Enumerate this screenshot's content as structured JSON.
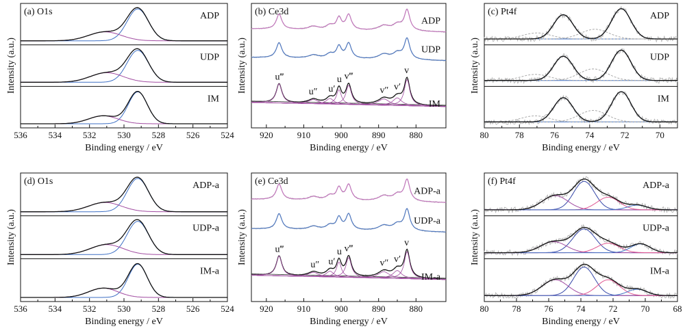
{
  "figure": {
    "panels": [
      "a",
      "b",
      "c",
      "d",
      "e",
      "f"
    ]
  },
  "colors": {
    "envelope": "#111111",
    "raw": "#b3b3b3",
    "blue": "#3d6fc4",
    "purple": "#a04aa0",
    "pink": "#e05590",
    "navy": "#3547a8",
    "dashed": "#a9a9a9",
    "ce_adp": "#c276bc",
    "ce_udp": "#4f78c0",
    "background": "#444444"
  },
  "chart_data": [
    {
      "id": "a",
      "type": "line",
      "title": "(a) O1s",
      "xlabel": "Binding energy / eV",
      "ylabel": "Intensity (a.u.)",
      "xlim": [
        536,
        524
      ],
      "x_reversed": true,
      "xticks": [
        "536",
        "534",
        "532",
        "530",
        "528",
        "526",
        "524"
      ],
      "xticks_values": [
        536,
        534,
        532,
        530,
        528,
        526,
        524
      ],
      "stack_labels": [
        "ADP",
        "UDP",
        "IM"
      ],
      "series": [
        {
          "name": "ADP",
          "peaks": [
            {
              "center": 529.2,
              "height": 1.0,
              "width": 0.62,
              "color": "blue"
            },
            {
              "center": 531.1,
              "height": 0.28,
              "width": 0.95,
              "color": "purple"
            }
          ]
        },
        {
          "name": "UDP",
          "peaks": [
            {
              "center": 529.2,
              "height": 1.0,
              "width": 0.62,
              "color": "blue"
            },
            {
              "center": 531.0,
              "height": 0.3,
              "width": 0.95,
              "color": "purple"
            }
          ]
        },
        {
          "name": "IM",
          "peaks": [
            {
              "center": 529.2,
              "height": 1.0,
              "width": 0.55,
              "color": "blue"
            },
            {
              "center": 531.2,
              "height": 0.25,
              "width": 0.85,
              "color": "purple"
            }
          ]
        }
      ]
    },
    {
      "id": "b",
      "type": "line",
      "title": "(b) Ce3d",
      "xlabel": "Binding energy / eV",
      "ylabel": "Intensity (a.u.)",
      "xlim": [
        924,
        872
      ],
      "x_reversed": true,
      "xticks": [
        "920",
        "910",
        "900",
        "890",
        "880"
      ],
      "xticks_values": [
        920,
        910,
        900,
        890,
        880
      ],
      "stack_labels": [
        "ADP",
        "UDP",
        "IM"
      ],
      "peak_labels": [
        {
          "text": "u‴",
          "x": 916.5
        },
        {
          "text": "u″",
          "x": 907.5
        },
        {
          "text": "u′",
          "x": 902.5
        },
        {
          "text": "u",
          "x": 900.5
        },
        {
          "text": "v‴",
          "x": 898.0
        },
        {
          "text": "v″",
          "x": 888.5
        },
        {
          "text": "v′",
          "x": 885.0
        },
        {
          "text": "v",
          "x": 882.5
        }
      ],
      "series": [
        {
          "name": "ADP",
          "color": "ce_adp"
        },
        {
          "name": "UDP",
          "color": "ce_udp"
        },
        {
          "name": "IM",
          "color": "envelope"
        }
      ]
    },
    {
      "id": "c",
      "type": "line",
      "title": "(c) Pt4f",
      "xlabel": "Binding energy / eV",
      "ylabel": "Intensity (a.u.)",
      "xlim": [
        80,
        69
      ],
      "x_reversed": true,
      "xticks": [
        "80",
        "78",
        "76",
        "74",
        "72",
        "70"
      ],
      "xticks_values": [
        80,
        78,
        76,
        74,
        72,
        70
      ],
      "stack_labels": [
        "ADP",
        "UDP",
        "IM"
      ],
      "series": [
        {
          "name": "ADP",
          "peaks": [
            {
              "center": 72.2,
              "height": 1.0,
              "width": 0.55,
              "color": "blue"
            },
            {
              "center": 75.5,
              "height": 0.8,
              "width": 0.55,
              "color": "blue"
            },
            {
              "center": 73.7,
              "height": 0.32,
              "width": 0.8,
              "color": "dashed"
            },
            {
              "center": 77.0,
              "height": 0.2,
              "width": 0.8,
              "color": "dashed"
            }
          ]
        },
        {
          "name": "UDP",
          "peaks": [
            {
              "center": 72.2,
              "height": 1.0,
              "width": 0.55,
              "color": "blue"
            },
            {
              "center": 75.5,
              "height": 0.8,
              "width": 0.55,
              "color": "blue"
            },
            {
              "center": 73.8,
              "height": 0.38,
              "width": 0.8,
              "color": "dashed"
            },
            {
              "center": 77.1,
              "height": 0.2,
              "width": 0.8,
              "color": "dashed"
            }
          ]
        },
        {
          "name": "IM",
          "peaks": [
            {
              "center": 72.2,
              "height": 1.0,
              "width": 0.55,
              "color": "blue"
            },
            {
              "center": 75.5,
              "height": 0.8,
              "width": 0.55,
              "color": "blue"
            },
            {
              "center": 73.8,
              "height": 0.38,
              "width": 0.8,
              "color": "dashed"
            },
            {
              "center": 77.1,
              "height": 0.2,
              "width": 0.8,
              "color": "dashed"
            }
          ]
        }
      ]
    },
    {
      "id": "d",
      "type": "line",
      "title": "(d) O1s",
      "xlabel": "Binding energy / eV",
      "ylabel": "Intensity (a.u.)",
      "xlim": [
        536,
        524
      ],
      "x_reversed": true,
      "xticks": [
        "536",
        "534",
        "532",
        "530",
        "528",
        "526",
        "524"
      ],
      "xticks_values": [
        536,
        534,
        532,
        530,
        528,
        526,
        524
      ],
      "stack_labels": [
        "ADP-a",
        "UDP-a",
        "IM-a"
      ],
      "series": [
        {
          "name": "ADP-a",
          "peaks": [
            {
              "center": 529.2,
              "height": 1.0,
              "width": 0.62,
              "color": "blue"
            },
            {
              "center": 531.1,
              "height": 0.28,
              "width": 0.95,
              "color": "purple"
            }
          ]
        },
        {
          "name": "UDP-a",
          "peaks": [
            {
              "center": 529.2,
              "height": 1.0,
              "width": 0.62,
              "color": "blue"
            },
            {
              "center": 531.0,
              "height": 0.3,
              "width": 0.95,
              "color": "purple"
            }
          ]
        },
        {
          "name": "IM-a",
          "peaks": [
            {
              "center": 529.2,
              "height": 1.0,
              "width": 0.55,
              "color": "blue"
            },
            {
              "center": 531.2,
              "height": 0.28,
              "width": 0.85,
              "color": "purple"
            }
          ]
        }
      ]
    },
    {
      "id": "e",
      "type": "line",
      "title": "(e) Ce3d",
      "xlabel": "Binding energy / eV",
      "ylabel": "Intensity (a.u.)",
      "xlim": [
        924,
        872
      ],
      "x_reversed": true,
      "xticks": [
        "920",
        "910",
        "900",
        "890",
        "880"
      ],
      "xticks_values": [
        920,
        910,
        900,
        890,
        880
      ],
      "stack_labels": [
        "ADP-a",
        "UDP-a",
        "IM-a"
      ],
      "peak_labels": [
        {
          "text": "u‴",
          "x": 916.5
        },
        {
          "text": "u″",
          "x": 907.0
        },
        {
          "text": "u′",
          "x": 902.5
        },
        {
          "text": "u",
          "x": 900.5
        },
        {
          "text": "v‴",
          "x": 898.0
        },
        {
          "text": "v″",
          "x": 888.5
        },
        {
          "text": "v′",
          "x": 885.0
        },
        {
          "text": "v",
          "x": 882.5
        }
      ],
      "series": [
        {
          "name": "ADP-a",
          "color": "ce_adp"
        },
        {
          "name": "UDP-a",
          "color": "ce_udp"
        },
        {
          "name": "IM-a",
          "color": "envelope"
        }
      ]
    },
    {
      "id": "f",
      "type": "line",
      "title": "(f) Pt4f",
      "xlabel": "Binding energy / eV",
      "ylabel": "Intensity (a.u.)",
      "xlim": [
        80,
        68
      ],
      "x_reversed": true,
      "xticks": [
        "80",
        "78",
        "76",
        "74",
        "72",
        "70",
        "68"
      ],
      "xticks_values": [
        80,
        78,
        76,
        74,
        72,
        70,
        68
      ],
      "stack_labels": [
        "ADP-a",
        "UDP-a",
        "IM-a"
      ],
      "series": [
        {
          "name": "ADP-a",
          "peaks": [
            {
              "center": 73.8,
              "height": 0.9,
              "width": 0.65,
              "color": "navy"
            },
            {
              "center": 75.6,
              "height": 0.45,
              "width": 0.8,
              "color": "purple"
            },
            {
              "center": 72.3,
              "height": 0.4,
              "width": 0.7,
              "color": "pink"
            },
            {
              "center": 70.5,
              "height": 0.15,
              "width": 0.6,
              "color": "blue"
            }
          ]
        },
        {
          "name": "UDP-a",
          "peaks": [
            {
              "center": 73.8,
              "height": 0.75,
              "width": 0.7,
              "color": "navy"
            },
            {
              "center": 75.7,
              "height": 0.35,
              "width": 0.8,
              "color": "purple"
            },
            {
              "center": 72.3,
              "height": 0.3,
              "width": 0.7,
              "color": "pink"
            },
            {
              "center": 70.3,
              "height": 0.28,
              "width": 0.6,
              "color": "blue"
            }
          ]
        },
        {
          "name": "IM-a",
          "peaks": [
            {
              "center": 73.8,
              "height": 0.9,
              "width": 0.65,
              "color": "navy"
            },
            {
              "center": 75.6,
              "height": 0.5,
              "width": 0.8,
              "color": "purple"
            },
            {
              "center": 72.3,
              "height": 0.5,
              "width": 0.7,
              "color": "pink"
            },
            {
              "center": 70.5,
              "height": 0.2,
              "width": 0.6,
              "color": "blue"
            }
          ]
        }
      ]
    }
  ]
}
